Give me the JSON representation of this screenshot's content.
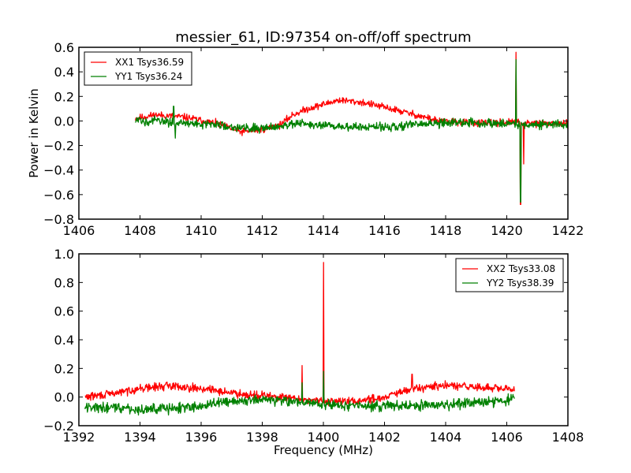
{
  "figure": {
    "title": "messier_61, ID:97354 on-off/off spectrum",
    "ylabel": "Power in Kelvin",
    "xlabel": "Frequency (MHz)"
  },
  "chart_data": [
    {
      "type": "line",
      "title": "messier_61, ID:97354 on-off/off spectrum",
      "xlabel": "",
      "ylabel": "Power in Kelvin",
      "xlim": [
        1406,
        1422
      ],
      "ylim": [
        -0.8,
        0.6
      ],
      "xticks": [
        "1406",
        "1408",
        "1410",
        "1412",
        "1414",
        "1416",
        "1418",
        "1420",
        "1422"
      ],
      "yticks": [
        "0.6",
        "0.4",
        "0.2",
        "0.0",
        "−0.2",
        "−0.4",
        "−0.6",
        "−0.8"
      ],
      "xtick_values": [
        1406,
        1408,
        1410,
        1412,
        1414,
        1416,
        1418,
        1420,
        1422
      ],
      "ytick_values": [
        0.6,
        0.4,
        0.2,
        0.0,
        -0.2,
        -0.4,
        -0.6,
        -0.8
      ],
      "legend_position": "upper-left",
      "grid": false,
      "x_range_data": [
        1407.85,
        1422.0
      ],
      "series": [
        {
          "name": "XX1 Tsys36.59",
          "color": "#ff0000",
          "noise": 0.02,
          "baseline": [
            [
              1407.85,
              0.02
            ],
            [
              1408.5,
              0.05
            ],
            [
              1409.5,
              0.03
            ],
            [
              1410.5,
              -0.02
            ],
            [
              1411.3,
              -0.09
            ],
            [
              1412.0,
              -0.07
            ],
            [
              1412.6,
              -0.03
            ],
            [
              1413.0,
              0.05
            ],
            [
              1413.5,
              0.1
            ],
            [
              1414.5,
              0.17
            ],
            [
              1415.3,
              0.15
            ],
            [
              1416.2,
              0.1
            ],
            [
              1417.0,
              0.05
            ],
            [
              1417.8,
              0.0
            ],
            [
              1418.5,
              -0.01
            ],
            [
              1419.5,
              -0.02
            ],
            [
              1420.2,
              -0.01
            ],
            [
              1420.6,
              -0.02
            ],
            [
              1421.5,
              -0.02
            ],
            [
              1422.0,
              -0.03
            ]
          ],
          "spikes": [
            [
              1420.3,
              0.56
            ],
            [
              1420.45,
              -0.68
            ],
            [
              1420.55,
              -0.35
            ]
          ]
        },
        {
          "name": "YY1 Tsys36.24",
          "color": "#008000",
          "noise": 0.025,
          "baseline": [
            [
              1407.85,
              0.0
            ],
            [
              1408.5,
              0.0
            ],
            [
              1409.5,
              -0.02
            ],
            [
              1410.5,
              -0.03
            ],
            [
              1411.5,
              -0.06
            ],
            [
              1412.3,
              -0.05
            ],
            [
              1413.0,
              -0.02
            ],
            [
              1414.0,
              -0.04
            ],
            [
              1415.0,
              -0.05
            ],
            [
              1416.0,
              -0.05
            ],
            [
              1417.0,
              -0.03
            ],
            [
              1417.8,
              -0.02
            ],
            [
              1418.5,
              -0.01
            ],
            [
              1419.5,
              -0.02
            ],
            [
              1420.2,
              -0.02
            ],
            [
              1420.6,
              -0.03
            ],
            [
              1421.5,
              -0.03
            ],
            [
              1422.0,
              -0.03
            ]
          ],
          "spikes": [
            [
              1409.1,
              0.12
            ],
            [
              1409.15,
              -0.14
            ],
            [
              1420.3,
              0.5
            ],
            [
              1420.45,
              -0.66
            ]
          ]
        }
      ]
    },
    {
      "type": "line",
      "title": "",
      "xlabel": "Frequency (MHz)",
      "ylabel": "",
      "xlim": [
        1392,
        1408
      ],
      "ylim": [
        -0.2,
        1.0
      ],
      "xticks": [
        "1392",
        "1394",
        "1396",
        "1398",
        "1400",
        "1402",
        "1404",
        "1406",
        "1408"
      ],
      "yticks": [
        "1.0",
        "0.8",
        "0.6",
        "0.4",
        "0.2",
        "0.0",
        "−0.2"
      ],
      "xtick_values": [
        1392,
        1394,
        1396,
        1398,
        1400,
        1402,
        1404,
        1406,
        1408
      ],
      "ytick_values": [
        1.0,
        0.8,
        0.6,
        0.4,
        0.2,
        0.0,
        -0.2
      ],
      "legend_position": "upper-right",
      "grid": false,
      "x_range_data": [
        1392.2,
        1406.25
      ],
      "series": [
        {
          "name": "XX2 Tsys33.08",
          "color": "#ff0000",
          "noise": 0.02,
          "baseline": [
            [
              1392.2,
              0.0
            ],
            [
              1393.0,
              0.02
            ],
            [
              1394.0,
              0.06
            ],
            [
              1395.0,
              0.08
            ],
            [
              1396.0,
              0.06
            ],
            [
              1397.0,
              0.03
            ],
            [
              1398.0,
              0.01
            ],
            [
              1399.0,
              -0.01
            ],
            [
              1400.0,
              -0.03
            ],
            [
              1401.0,
              -0.03
            ],
            [
              1402.0,
              0.0
            ],
            [
              1403.0,
              0.06
            ],
            [
              1404.0,
              0.08
            ],
            [
              1405.0,
              0.07
            ],
            [
              1406.25,
              0.05
            ]
          ],
          "spikes": [
            [
              1399.3,
              0.22
            ],
            [
              1400.0,
              0.94
            ],
            [
              1402.9,
              0.16
            ]
          ]
        },
        {
          "name": "YY2 Tsys38.39",
          "color": "#008000",
          "noise": 0.025,
          "baseline": [
            [
              1392.2,
              -0.07
            ],
            [
              1393.0,
              -0.07
            ],
            [
              1394.0,
              -0.09
            ],
            [
              1395.0,
              -0.08
            ],
            [
              1396.0,
              -0.06
            ],
            [
              1397.0,
              -0.03
            ],
            [
              1398.0,
              -0.02
            ],
            [
              1399.0,
              -0.03
            ],
            [
              1400.0,
              -0.05
            ],
            [
              1401.0,
              -0.06
            ],
            [
              1402.0,
              -0.06
            ],
            [
              1403.0,
              -0.06
            ],
            [
              1404.0,
              -0.05
            ],
            [
              1405.0,
              -0.04
            ],
            [
              1406.0,
              -0.02
            ],
            [
              1406.25,
              0.0
            ]
          ],
          "spikes": [
            [
              1399.3,
              0.1
            ],
            [
              1400.0,
              0.18
            ]
          ]
        }
      ]
    }
  ]
}
